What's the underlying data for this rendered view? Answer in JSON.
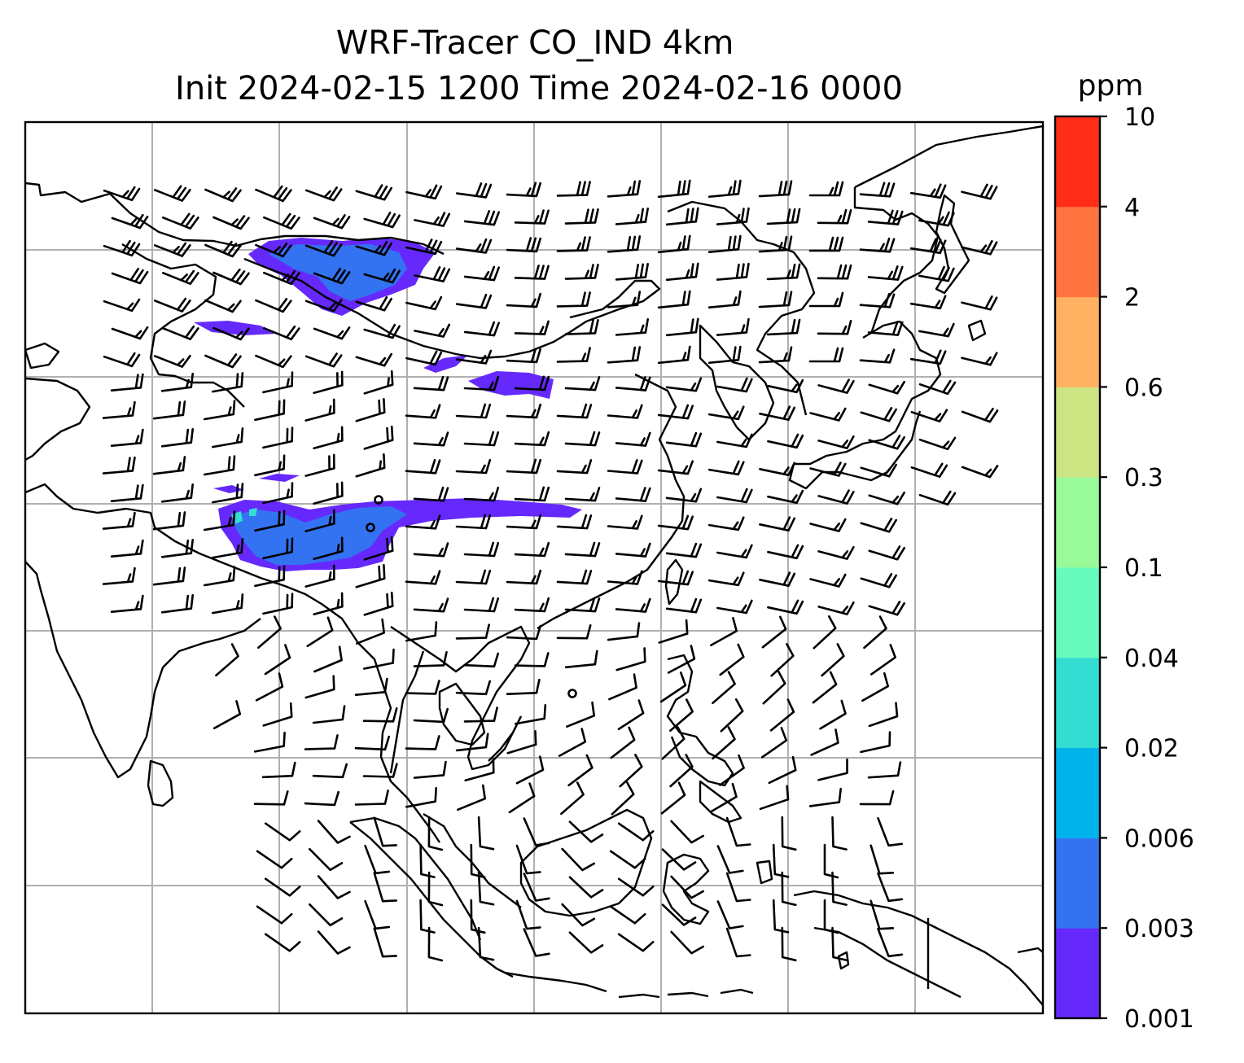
{
  "title": {
    "line1": "WRF-Tracer CO_IND 4km",
    "line2": "Init 2024-02-15 1200 Time 2024-02-16 0000"
  },
  "colorbar": {
    "unit": "ppm",
    "levels": [
      "0.001",
      "0.003",
      "0.006",
      "0.02",
      "0.04",
      "0.1",
      "0.3",
      "0.6",
      "2",
      "4",
      "10"
    ],
    "colors": [
      "#6629fc",
      "#3373f2",
      "#00b3ea",
      "#33ddd2",
      "#66fbbc",
      "#99fa99",
      "#cde483",
      "#ffb060",
      "#ff7341",
      "#ff2d17"
    ]
  },
  "map": {
    "gridlines": true,
    "grid_color": "#b0b0b0",
    "coastline_color": "#000000",
    "overlay": "wind barbs",
    "plume_colors_present": [
      "#6629fc",
      "#3373f2",
      "#33ddd2"
    ]
  }
}
